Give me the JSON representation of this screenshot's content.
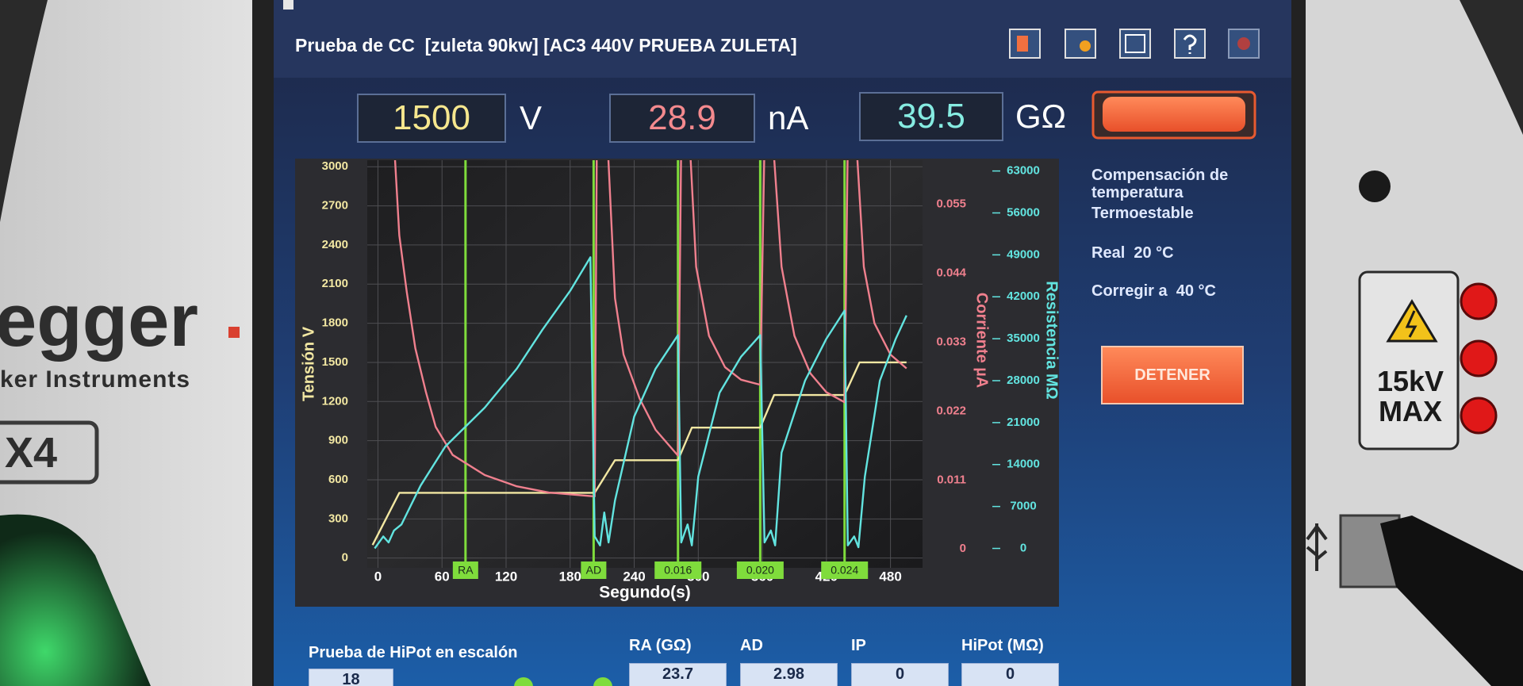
{
  "header": {
    "title": "Prueba de CC  [zuleta 90kw] [AC3 440V PRUEBA ZULETA]"
  },
  "readouts": [
    {
      "value": 1500,
      "unit": "V"
    },
    {
      "value": 28.9,
      "unit": "nA"
    },
    {
      "value": 39.5,
      "unit": "GΩ"
    }
  ],
  "compensation": {
    "title": "Compensación de temperatura",
    "mode": "Termoestable",
    "real": "Real  20 °C",
    "correct": "Corregir a  40 °C"
  },
  "stop_button": "DETENER",
  "results": {
    "title": "Prueba de HiPot en escalón",
    "step": 18,
    "columns": [
      {
        "label": "RA (GΩ)",
        "value": 23.7
      },
      {
        "label": "AD",
        "value": 2.98
      },
      {
        "label": "IP",
        "value": 0
      },
      {
        "label": "HiPot (MΩ)",
        "value": 0
      }
    ]
  },
  "device": {
    "brand": "egger",
    "tagline": "ker Instruments",
    "model": "X4",
    "rating": [
      "15kV",
      "MAX"
    ]
  },
  "chart_data": {
    "type": "line",
    "xlabel": "Segundo(s)",
    "ylabel": "Tensión V",
    "y2label": "Corriente µA",
    "y3label": "Resistencia MΩ",
    "xlim": [
      -10,
      510
    ],
    "xticks": [
      0,
      60,
      120,
      180,
      240,
      300,
      360,
      420,
      480
    ],
    "ylim": [
      -75,
      3050
    ],
    "yticks": [
      0,
      300,
      600,
      900,
      1200,
      1500,
      1800,
      2100,
      2400,
      2700,
      3000
    ],
    "y2lim": [
      -0.003,
      0.062
    ],
    "y2ticks": [
      0,
      0.011,
      0.022,
      0.033,
      0.044,
      0.055
    ],
    "y3lim": [
      -3240,
      64800
    ],
    "y3ticks": [
      0,
      7000,
      14000,
      21000,
      28000,
      35000,
      42000,
      49000,
      56000,
      63000
    ],
    "grid": true,
    "markers": [
      {
        "x": 82,
        "label": "RA"
      },
      {
        "x": 202,
        "label": "AD"
      },
      {
        "x": 281,
        "label": "0.016"
      },
      {
        "x": 358,
        "label": "0.020"
      },
      {
        "x": 437,
        "label": "0.024"
      }
    ],
    "marker_color": "#7fdc3c",
    "series": [
      {
        "name": "Tensión",
        "color": "#f2e7a2",
        "axis": "y",
        "x": [
          -5,
          20,
          203,
          222,
          281,
          294,
          358,
          371,
          437,
          451,
          495
        ],
        "values": [
          100,
          500,
          500,
          750,
          750,
          1000,
          1000,
          1250,
          1250,
          1500,
          1500
        ]
      },
      {
        "name": "Corriente",
        "color": "#f0808e",
        "axis": "y2",
        "x": [
          -5,
          15,
          20,
          27,
          35,
          45,
          54,
          70,
          100,
          130,
          160,
          203,
          205,
          215,
          222,
          230,
          245,
          260,
          281,
          284,
          292,
          298,
          310,
          325,
          340,
          358,
          362,
          370,
          378,
          390,
          405,
          420,
          437,
          440,
          448,
          455,
          465,
          480,
          495
        ],
        "values": [
          0.065,
          0.065,
          0.05,
          0.041,
          0.032,
          0.025,
          0.0195,
          0.015,
          0.0118,
          0.01,
          0.009,
          0.0084,
          0.065,
          0.065,
          0.04,
          0.031,
          0.024,
          0.019,
          0.0149,
          0.065,
          0.065,
          0.045,
          0.034,
          0.029,
          0.027,
          0.0262,
          0.065,
          0.065,
          0.045,
          0.034,
          0.028,
          0.025,
          0.0234,
          0.065,
          0.065,
          0.045,
          0.036,
          0.031,
          0.0288
        ]
      },
      {
        "name": "Resistencia",
        "color": "#62e4e0",
        "axis": "y3",
        "x": [
          -3,
          5,
          10,
          15,
          22,
          40,
          63,
          100,
          130,
          154,
          180,
          199,
          203,
          208,
          212,
          216,
          222,
          240,
          260,
          281,
          284,
          290,
          294,
          300,
          320,
          340,
          358,
          362,
          368,
          372,
          378,
          400,
          420,
          437,
          440,
          446,
          450,
          456,
          470,
          485,
          495
        ],
        "values": [
          0,
          2000,
          1000,
          3000,
          4000,
          10500,
          17000,
          23500,
          30000,
          36500,
          43000,
          48600,
          2000,
          500,
          6000,
          1000,
          8000,
          22000,
          30000,
          35600,
          1000,
          4000,
          500,
          12000,
          26000,
          32000,
          35600,
          1000,
          3000,
          500,
          16000,
          28000,
          35000,
          39700,
          500,
          2000,
          200,
          12000,
          28000,
          35000,
          38900
        ]
      }
    ]
  }
}
